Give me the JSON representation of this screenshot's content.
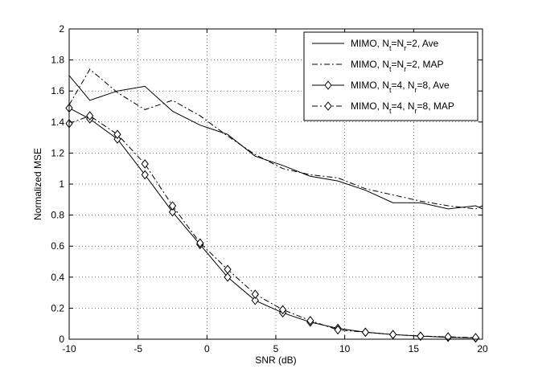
{
  "chart_data": {
    "type": "line",
    "title": "",
    "xlabel": "SNR (dB)",
    "ylabel": "Normalized MSE",
    "xlim": [
      -10,
      20
    ],
    "ylim": [
      0,
      2
    ],
    "xticks": [
      -10,
      -5,
      0,
      5,
      10,
      15,
      20
    ],
    "yticks": [
      0,
      0.2,
      0.4,
      0.6,
      0.8,
      1,
      1.2,
      1.4,
      1.6,
      1.8,
      2
    ],
    "grid": true,
    "legend_position": "top-right",
    "series": [
      {
        "name": "MIMO, N_t=N_r=2, Ave",
        "legend": {
          "prefix": "MIMO, N",
          "s1": "t",
          "mid": "=N",
          "s2": "r",
          "suffix": "=2, Ave"
        },
        "style": "solid",
        "marker": "none",
        "x": [
          -10,
          -8.5,
          -6.5,
          -4.5,
          -2.5,
          -0.5,
          1.5,
          3.5,
          5.5,
          7.5,
          9.5,
          11.5,
          13.5,
          15.5,
          17.5,
          19.5,
          20
        ],
        "y": [
          1.7,
          1.54,
          1.6,
          1.63,
          1.47,
          1.38,
          1.32,
          1.18,
          1.12,
          1.05,
          1.02,
          0.96,
          0.88,
          0.88,
          0.84,
          0.86,
          0.84
        ]
      },
      {
        "name": "MIMO, N_t=N_r=2, MAP",
        "legend": {
          "prefix": "MIMO, N",
          "s1": "t",
          "mid": "=N",
          "s2": "r",
          "suffix": "=2, MAP"
        },
        "style": "dashdot",
        "marker": "none",
        "x": [
          -10,
          -8.5,
          -6.5,
          -4.5,
          -2.5,
          -0.5,
          1.5,
          3.5,
          5.5,
          7.5,
          9.5,
          11.5,
          13.5,
          15.5,
          17.5,
          19.5,
          20
        ],
        "y": [
          1.51,
          1.74,
          1.59,
          1.48,
          1.54,
          1.44,
          1.31,
          1.19,
          1.1,
          1.06,
          1.04,
          0.97,
          0.93,
          0.89,
          0.86,
          0.84,
          0.86
        ]
      },
      {
        "name": "MIMO, N_t=4, N_r=8, Ave",
        "legend": {
          "prefix": "MIMO, N",
          "s1": "t",
          "mid": "=4, N",
          "s2": "r",
          "suffix": "=8, Ave"
        },
        "style": "solid",
        "marker": "diamond",
        "x": [
          -10,
          -8.5,
          -6.5,
          -4.5,
          -2.5,
          -0.5,
          1.5,
          3.5,
          5.5,
          7.5,
          9.5,
          11.5,
          13.5,
          15.5,
          17.5,
          19.5
        ],
        "y": [
          1.49,
          1.42,
          1.29,
          1.06,
          0.82,
          0.61,
          0.4,
          0.25,
          0.17,
          0.11,
          0.07,
          0.045,
          0.03,
          0.02,
          0.012,
          0.008
        ]
      },
      {
        "name": "MIMO, N_t=4, N_r=8, MAP",
        "legend": {
          "prefix": "MIMO, N",
          "s1": "t",
          "mid": "=4, N",
          "s2": "r",
          "suffix": "=8, MAP"
        },
        "style": "dashdot",
        "marker": "diamond",
        "x": [
          -10,
          -8.5,
          -6.5,
          -4.5,
          -2.5,
          -0.5,
          1.5,
          3.5,
          5.5,
          7.5,
          9.5,
          11.5,
          13.5,
          15.5,
          17.5,
          19.5
        ],
        "y": [
          1.39,
          1.44,
          1.32,
          1.13,
          0.86,
          0.62,
          0.45,
          0.29,
          0.19,
          0.12,
          0.06,
          0.045,
          0.03,
          0.02,
          0.015,
          0.01
        ]
      }
    ]
  }
}
